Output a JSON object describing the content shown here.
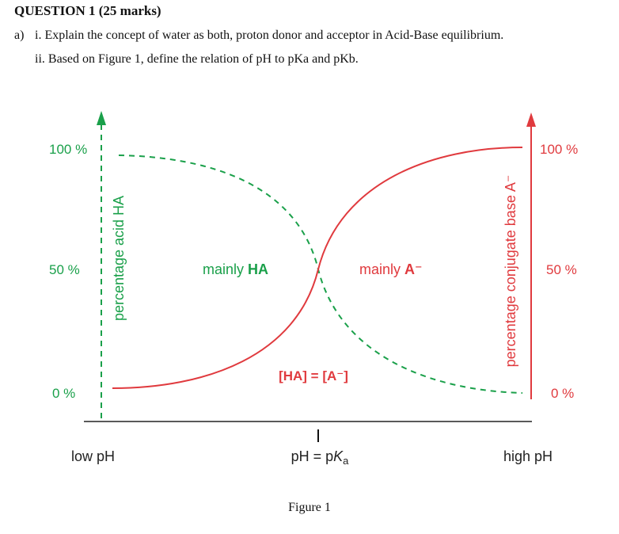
{
  "question": {
    "title": "QUESTION 1  (25 marks)",
    "part_label": "a)",
    "part_i": "i. Explain the concept of water as both, proton donor and acceptor in Acid-Base equilibrium.",
    "part_ii": "ii. Based on Figure 1, define the relation of pH to pKa and pKb."
  },
  "figure": {
    "caption": "Figure 1",
    "left_axis": {
      "label": "percentage acid HA",
      "ticks": [
        "100 %",
        "50 %",
        "0 %"
      ],
      "color": "#1aa04a"
    },
    "right_axis": {
      "label": "percentage conjugate base A⁻",
      "ticks": [
        "100 %",
        "50 %",
        "0 %"
      ],
      "color": "#e03a3e"
    },
    "regions": {
      "acid": {
        "text": "mainly ",
        "bold": "HA"
      },
      "base": {
        "text": "mainly ",
        "bold": "A⁻"
      }
    },
    "equality_label": "[HA] = [A⁻]",
    "x_labels": {
      "low": "low pH",
      "mid_prefix": "pH = p",
      "mid_italic": "K",
      "mid_sub": "a",
      "high": "high pH"
    }
  }
}
